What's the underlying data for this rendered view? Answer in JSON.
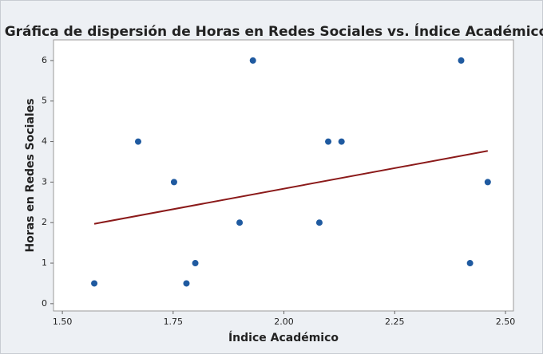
{
  "chart_data": {
    "type": "scatter",
    "title": "Gráfica de dispersión de Horas en Redes Sociales vs. Índice Académico",
    "xlabel": "Índice Académico",
    "ylabel": "Horas en Redes Sociales",
    "x": [
      1.572,
      1.671,
      1.752,
      1.78,
      1.8,
      1.9,
      1.93,
      2.08,
      2.1,
      2.13,
      2.4,
      2.42,
      2.46
    ],
    "values": [
      0.5,
      4,
      3,
      0.5,
      1,
      2,
      6,
      2,
      4,
      4,
      6,
      1,
      3
    ],
    "color": "#1f5aa0",
    "trendline": {
      "x": [
        1.572,
        2.46
      ],
      "values": [
        1.97,
        3.77
      ],
      "color": "#8b1a1a"
    },
    "xlim": [
      1.48,
      2.518
    ],
    "ylim": [
      -0.18,
      6.51
    ],
    "xticks": [
      {
        "value": 1.5,
        "label": "1.50"
      },
      {
        "value": 1.75,
        "label": "1.75"
      },
      {
        "value": 2.0,
        "label": "2.00"
      },
      {
        "value": 2.25,
        "label": "2.25"
      },
      {
        "value": 2.5,
        "label": "2.50"
      }
    ],
    "yticks": [
      0,
      1,
      2,
      3,
      4,
      5,
      6
    ]
  }
}
